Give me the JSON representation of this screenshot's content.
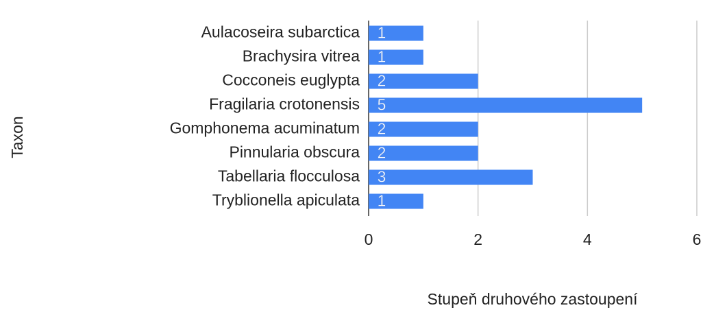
{
  "chart_data": {
    "type": "bar",
    "orientation": "horizontal",
    "categories": [
      "Aulacoseira subarctica",
      "Brachysira vitrea",
      "Cocconeis euglypta",
      "Fragilaria crotonensis",
      "Gomphonema acuminatum",
      "Pinnularia obscura",
      "Tabellaria flocculosa",
      "Tryblionella apiculata"
    ],
    "values": [
      1,
      1,
      2,
      5,
      2,
      2,
      3,
      1
    ],
    "color": "#4285f4",
    "xlim": [
      0,
      6
    ],
    "xticks": [
      0,
      2,
      4,
      6
    ],
    "grid": true,
    "x_label": "Stupeň druhového zastoupení",
    "y_label": "Taxon"
  }
}
